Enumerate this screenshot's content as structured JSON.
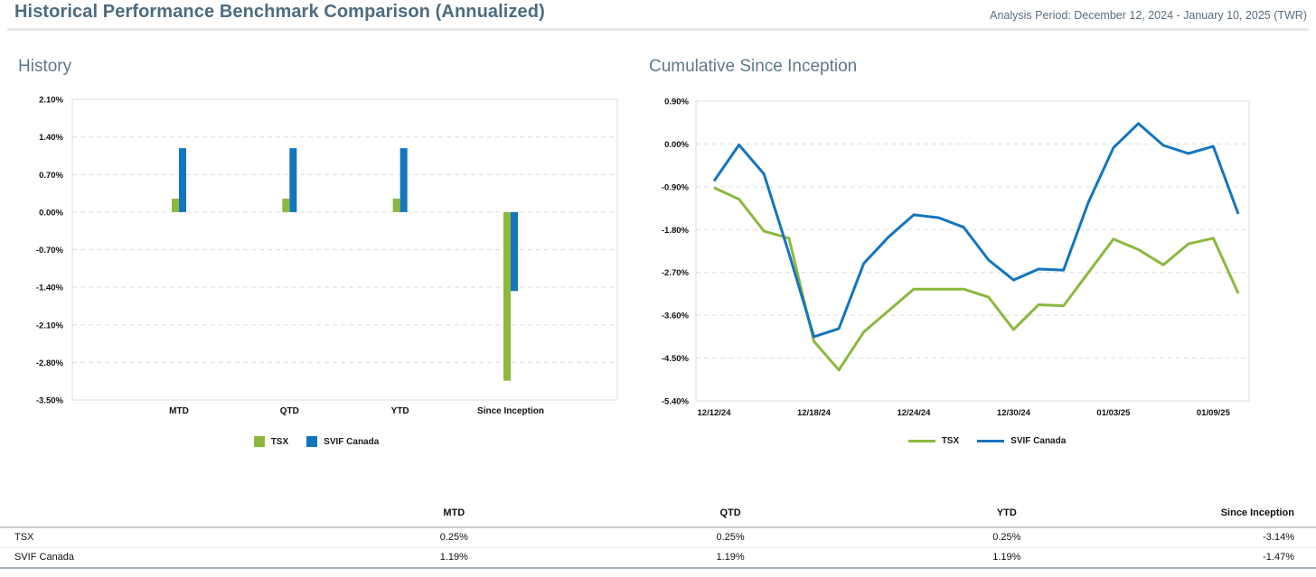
{
  "header": {
    "title": "Historical Performance Benchmark Comparison (Annualized)",
    "analysis_period": "Analysis Period: December 12, 2024 - January 10, 2025 (TWR)"
  },
  "colors": {
    "tsx_green": "#8CB83E",
    "svif_blue": "#1375BE",
    "title_slate": "#4E6B80",
    "grid_gray": "#DCDCDC"
  },
  "chart_data": [
    {
      "type": "bar",
      "title": "History",
      "categories": [
        "MTD",
        "QTD",
        "YTD",
        "Since Inception"
      ],
      "series": [
        {
          "name": "TSX",
          "color": "#8CB83E",
          "values": [
            0.25,
            0.25,
            0.25,
            -3.14
          ]
        },
        {
          "name": "SVIF Canada",
          "color": "#1375BE",
          "values": [
            1.19,
            1.19,
            1.19,
            -1.47
          ]
        }
      ],
      "ylim": [
        -3.5,
        2.1
      ],
      "ytick_labels": [
        "2.10%",
        "1.40%",
        "0.70%",
        "0.00%",
        "-0.70%",
        "-1.40%",
        "-2.10%",
        "-2.80%",
        "-3.50%"
      ],
      "grid": "dashed horizontal",
      "legend_position": "bottom"
    },
    {
      "type": "line",
      "title": "Cumulative Since Inception",
      "x": [
        "12/12/24",
        "12/13/24",
        "12/16/24",
        "12/17/24",
        "12/18/24",
        "12/19/24",
        "12/20/24",
        "12/23/24",
        "12/24/24",
        "12/25/24",
        "12/26/24",
        "12/27/24",
        "12/30/24",
        "12/31/24",
        "01/01/25",
        "01/02/25",
        "01/03/25",
        "01/06/25",
        "01/07/25",
        "01/08/25",
        "01/09/25",
        "01/10/25"
      ],
      "x_tick_labels": [
        "12/12/24",
        "12/18/24",
        "12/24/24",
        "12/30/24",
        "01/03/25",
        "01/09/25"
      ],
      "x_tick_every": 4,
      "series": [
        {
          "name": "TSX",
          "color": "#8CB83E",
          "values": [
            -0.92,
            -1.16,
            -1.83,
            -1.98,
            -4.15,
            -4.75,
            -3.95,
            -3.5,
            -3.05,
            -3.05,
            -3.05,
            -3.22,
            -3.9,
            -3.38,
            -3.4,
            -2.7,
            -2.0,
            -2.22,
            -2.54,
            -2.1,
            -1.98,
            -3.14
          ]
        },
        {
          "name": "SVIF Canada",
          "color": "#1375BE",
          "values": [
            -0.78,
            -0.02,
            -0.63,
            -2.3,
            -4.05,
            -3.88,
            -2.51,
            -1.95,
            -1.49,
            -1.55,
            -1.75,
            -2.44,
            -2.86,
            -2.63,
            -2.65,
            -1.22,
            -0.08,
            0.43,
            -0.03,
            -0.2,
            -0.05,
            -1.47
          ]
        }
      ],
      "ylim": [
        -5.4,
        0.9
      ],
      "ytick_labels": [
        "0.90%",
        "0.00%",
        "-0.90%",
        "-1.80%",
        "-2.70%",
        "-3.60%",
        "-4.50%",
        "-5.40%"
      ],
      "grid": "dashed horizontal",
      "legend_position": "bottom"
    }
  ],
  "table": {
    "columns": [
      "",
      "MTD",
      "QTD",
      "YTD",
      "Since Inception"
    ],
    "rows": [
      {
        "label": "TSX",
        "values": [
          "0.25%",
          "0.25%",
          "0.25%",
          "-3.14%"
        ]
      },
      {
        "label": "SVIF Canada",
        "values": [
          "1.19%",
          "1.19%",
          "1.19%",
          "-1.47%"
        ]
      }
    ]
  }
}
